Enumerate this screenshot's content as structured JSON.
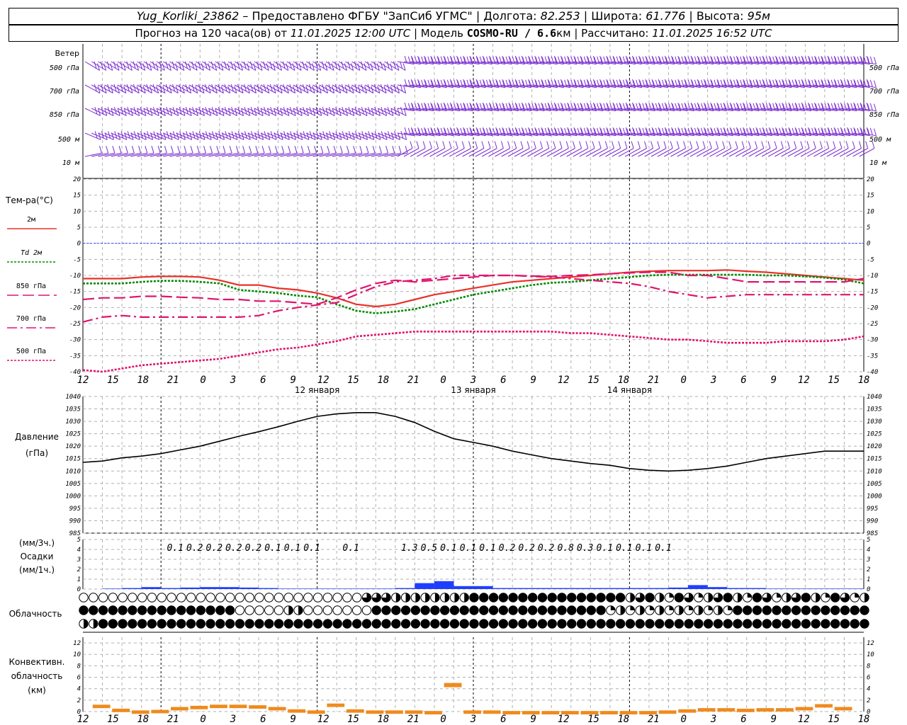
{
  "header": {
    "station": "Yug_Korliki_23862",
    "provided": "– Предоставлено ФГБУ \"ЗапСиб УГМС\"",
    "lon_label": "Долгота:",
    "lon": "82.253",
    "lat_label": "Широта:",
    "lat": "61.776",
    "alt_label": "Высота:",
    "alt": "95м",
    "forecast_label": "Прогноз на 120 часа(ов) от",
    "forecast_from": "11.01.2025 12:00 UTC",
    "model_label": "Модель",
    "model": "COSMO-RU / 6.6",
    "model_unit": "км",
    "computed_label": "Рассчитано:",
    "computed": "11.01.2025 16:52 UTC"
  },
  "colors": {
    "wind": "#7b2fd0",
    "t2m": "#e8322a",
    "td2m": "#008a00",
    "t850": "#e0146e",
    "t700": "#e0146e",
    "t500": "#e0146e",
    "zero_line": "#3050ff",
    "pressure": "#000000",
    "precip": "#1f3fff",
    "convective": "#f08a1c",
    "grid": "#b0b0b0"
  },
  "time_axis": {
    "hour_labels": [
      "12",
      "15",
      "18",
      "21",
      "0",
      "3",
      "6",
      "9",
      "12",
      "15",
      "18",
      "21",
      "0",
      "3",
      "6",
      "9",
      "12",
      "15",
      "18",
      "21",
      "0",
      "3",
      "6",
      "9",
      "12",
      "15",
      "18"
    ],
    "day_labels": [
      {
        "text": "12 января",
        "hour": 36
      },
      {
        "text": "13 января",
        "hour": 60
      },
      {
        "text": "14 января",
        "hour": 84
      }
    ],
    "day_boundaries": [
      12,
      36,
      60,
      84
    ]
  },
  "wind": {
    "title": "Ветер",
    "levels": [
      "500 гПа",
      "700 гПа",
      "850 гПа",
      "500 м",
      "10  м"
    ]
  },
  "temperature": {
    "title": "Тем-ра(°С)",
    "legend": [
      {
        "label": "2м",
        "key": "t2m"
      },
      {
        "label": "Td  2м",
        "key": "td2m"
      },
      {
        "label": "850 гПа",
        "key": "t850"
      },
      {
        "label": "700 гПа",
        "key": "t700"
      },
      {
        "label": "500 гПа",
        "key": "t500"
      }
    ],
    "ticks": [
      "20",
      "15",
      "10",
      "5",
      "0",
      "-5",
      "-10",
      "-15",
      "-20",
      "-25",
      "-30",
      "-35",
      "-40"
    ]
  },
  "pressure": {
    "title": "Давление",
    "unit": "(гПа)",
    "ticks": [
      "1040",
      "1035",
      "1030",
      "1025",
      "1020",
      "1015",
      "1010",
      "1005",
      "1000",
      "995",
      "990",
      "985"
    ]
  },
  "precip": {
    "unit3": "(мм/3ч.)",
    "title": "Осадки",
    "unit1": "(мм/1ч.)",
    "ticks": [
      "5",
      "4",
      "3",
      "2",
      "1",
      "0"
    ],
    "labels": [
      {
        "hour": 12,
        "text": "0.1"
      },
      {
        "hour": 15,
        "text": "0.2"
      },
      {
        "hour": 18,
        "text": "0.2"
      },
      {
        "hour": 21,
        "text": "0.2"
      },
      {
        "hour": 24,
        "text": "0.2"
      },
      {
        "hour": 27,
        "text": "0.1"
      },
      {
        "hour": 30,
        "text": "0.1"
      },
      {
        "hour": 33,
        "text": "0.1"
      },
      {
        "hour": 39,
        "text": "0.1"
      },
      {
        "hour": 48,
        "text": "1.3"
      },
      {
        "hour": 51,
        "text": "0.5"
      },
      {
        "hour": 54,
        "text": "0.1"
      },
      {
        "hour": 57,
        "text": "0.1"
      },
      {
        "hour": 60,
        "text": "0.1"
      },
      {
        "hour": 63,
        "text": "0.2"
      },
      {
        "hour": 66,
        "text": "0.2"
      },
      {
        "hour": 69,
        "text": "0.2"
      },
      {
        "hour": 72,
        "text": "0.8"
      },
      {
        "hour": 75,
        "text": "0.3"
      },
      {
        "hour": 78,
        "text": "0.1"
      },
      {
        "hour": 81,
        "text": "0.1"
      },
      {
        "hour": 84,
        "text": "0.1"
      },
      {
        "hour": 87,
        "text": "0.1"
      }
    ]
  },
  "cloud": {
    "title": "Облачность"
  },
  "convective": {
    "title1": "Конвективн.",
    "title2": "облачность",
    "unit": "(км)",
    "ticks": [
      "12",
      "10",
      "8",
      "6",
      "4",
      "2",
      "0"
    ]
  },
  "chart_data": [
    {
      "type": "line",
      "title": "Тем-ра(°С)",
      "x_unit": "hours from 11.01.2025 12:00 UTC",
      "ylim": [
        -40,
        20
      ],
      "grid": true,
      "legend_position": "left",
      "series": [
        {
          "name": "2м",
          "key": "t2m",
          "style": "solid",
          "x": [
            0,
            6,
            9,
            12,
            15,
            18,
            21,
            24,
            27,
            30,
            33,
            36,
            39,
            42,
            45,
            48,
            51,
            54,
            57,
            60,
            63,
            66,
            69,
            72,
            75,
            78,
            81,
            84,
            87,
            90,
            93,
            96,
            99,
            102,
            105,
            108,
            111,
            114,
            117,
            120
          ],
          "y": [
            -11,
            -11,
            -10.5,
            -10.3,
            -10.3,
            -10.5,
            -11.5,
            -13,
            -13,
            -14,
            -14.5,
            -15.5,
            -17,
            -19,
            -19.7,
            -19,
            -17.5,
            -16,
            -15,
            -14,
            -13,
            -12,
            -11.5,
            -11,
            -10.5,
            -10,
            -9.5,
            -9,
            -8.7,
            -8.5,
            -8.5,
            -8.5,
            -8.3,
            -8.7,
            -9,
            -9.5,
            -10,
            -10.5,
            -11,
            -11.5
          ]
        },
        {
          "name": "Td  2м",
          "key": "td2m",
          "style": "dotted",
          "x": [
            0,
            6,
            9,
            12,
            15,
            18,
            21,
            24,
            27,
            30,
            33,
            36,
            39,
            42,
            45,
            48,
            51,
            54,
            57,
            60,
            63,
            66,
            69,
            72,
            75,
            78,
            81,
            84,
            87,
            90,
            93,
            96,
            99,
            102,
            105,
            108,
            111,
            114,
            117,
            120
          ],
          "y": [
            -12.5,
            -12.5,
            -12,
            -11.7,
            -11.7,
            -12,
            -12.5,
            -14.5,
            -15,
            -15.5,
            -16.3,
            -16.8,
            -19,
            -21,
            -21.8,
            -21.3,
            -20.5,
            -19,
            -17.5,
            -16,
            -15,
            -14,
            -13,
            -12.3,
            -12,
            -11.5,
            -11,
            -10.5,
            -10,
            -9.8,
            -9.8,
            -9.8,
            -9.8,
            -9.8,
            -10,
            -10,
            -10.3,
            -10.7,
            -11.3,
            -12.5
          ]
        },
        {
          "name": "850 гПа",
          "key": "t850",
          "style": "longdash",
          "x": [
            0,
            3,
            6,
            9,
            12,
            15,
            18,
            21,
            24,
            27,
            30,
            33,
            36,
            39,
            42,
            45,
            48,
            51,
            54,
            57,
            60,
            63,
            66,
            69,
            72,
            75,
            78,
            81,
            84,
            87,
            90,
            93,
            96,
            99,
            102,
            105,
            108,
            111,
            114,
            117,
            120
          ],
          "y": [
            -17.5,
            -17,
            -17,
            -16.5,
            -16.5,
            -16.8,
            -17,
            -17.5,
            -17.5,
            -18,
            -18,
            -18.5,
            -19,
            -17,
            -14.5,
            -12.5,
            -11.5,
            -12,
            -11.5,
            -11,
            -10.5,
            -10,
            -10,
            -10.2,
            -10.3,
            -10,
            -9.8,
            -9.5,
            -9.2,
            -9,
            -9,
            -10,
            -10,
            -11,
            -12,
            -12,
            -12,
            -12,
            -12,
            -12,
            -11
          ]
        },
        {
          "name": "700 гПа",
          "key": "t700",
          "style": "dashdot",
          "x": [
            0,
            3,
            6,
            9,
            12,
            15,
            18,
            21,
            24,
            27,
            30,
            33,
            36,
            39,
            42,
            45,
            48,
            51,
            54,
            57,
            60,
            63,
            66,
            69,
            72,
            75,
            78,
            81,
            84,
            87,
            90,
            93,
            96,
            99,
            102,
            105,
            108,
            111,
            114,
            117,
            120
          ],
          "y": [
            -24.5,
            -23,
            -22.5,
            -23,
            -23,
            -23,
            -23,
            -23,
            -23,
            -22.5,
            -21,
            -20,
            -19.2,
            -18.5,
            -16,
            -13.5,
            -12,
            -11.5,
            -11,
            -10,
            -10,
            -10,
            -10,
            -10.3,
            -10.5,
            -11,
            -11.5,
            -12,
            -12.5,
            -13.5,
            -15,
            -16,
            -17,
            -16.5,
            -16,
            -16,
            -16,
            -16,
            -16,
            -16,
            -16
          ]
        },
        {
          "name": "500 гПа",
          "key": "t500",
          "style": "dotted",
          "x": [
            0,
            3,
            6,
            9,
            12,
            15,
            18,
            21,
            24,
            27,
            30,
            33,
            36,
            39,
            42,
            45,
            48,
            51,
            54,
            57,
            60,
            63,
            66,
            69,
            72,
            75,
            78,
            81,
            84,
            87,
            90,
            93,
            96,
            99,
            102,
            105,
            108,
            111,
            114,
            117,
            120
          ],
          "y": [
            -39.5,
            -40,
            -39,
            -38,
            -37.5,
            -37,
            -36.5,
            -36,
            -35,
            -34,
            -33,
            -32.5,
            -31.5,
            -30.5,
            -29,
            -28.5,
            -28,
            -27.5,
            -27.5,
            -27.5,
            -27.5,
            -27.5,
            -27.5,
            -27.5,
            -27.5,
            -28,
            -28,
            -28.5,
            -29,
            -29.5,
            -30,
            -30,
            -30.5,
            -31,
            -31,
            -31,
            -30.5,
            -30.5,
            -30.5,
            -30,
            -29
          ]
        }
      ]
    },
    {
      "type": "line",
      "title": "Давление",
      "ylabel": "(гПа)",
      "ylim": [
        985,
        1040
      ],
      "grid": true,
      "series": [
        {
          "name": "Давление",
          "x": [
            0,
            3,
            6,
            9,
            12,
            15,
            18,
            21,
            24,
            27,
            30,
            33,
            36,
            39,
            42,
            45,
            48,
            51,
            54,
            57,
            60,
            63,
            66,
            69,
            72,
            75,
            78,
            81,
            84,
            87,
            90,
            93,
            96,
            99,
            102,
            105,
            108,
            111,
            114,
            117,
            120
          ],
          "y": [
            1013.5,
            1014,
            1015.3,
            1016,
            1017,
            1018.5,
            1020,
            1022,
            1024,
            1025.8,
            1027.8,
            1030,
            1032,
            1033,
            1033.5,
            1033.5,
            1032,
            1029.5,
            1026,
            1023,
            1021.5,
            1020,
            1018,
            1016.5,
            1015,
            1014,
            1013,
            1012.3,
            1011,
            1010.3,
            1010,
            1010.3,
            1011,
            1012,
            1013.5,
            1015,
            1016,
            1017,
            1018,
            1018,
            1018
          ]
        }
      ]
    },
    {
      "type": "bar",
      "title": "Осадки",
      "ylabel": "(мм/1ч.)",
      "ylim": [
        0,
        5
      ],
      "x": [
        0,
        3,
        6,
        9,
        12,
        15,
        18,
        21,
        24,
        27,
        30,
        33,
        36,
        39,
        42,
        45,
        48,
        51,
        54,
        57,
        60,
        63,
        66,
        69,
        72,
        75,
        78,
        81,
        84,
        87,
        90,
        93,
        96,
        99,
        102,
        105,
        108,
        111,
        114,
        117
      ],
      "values": [
        0,
        0.05,
        0.1,
        0.2,
        0.1,
        0.15,
        0.2,
        0.2,
        0.15,
        0.1,
        0.05,
        0.05,
        0.05,
        0.05,
        0.05,
        0.05,
        0.1,
        0.6,
        0.8,
        0.3,
        0.3,
        0.1,
        0.1,
        0.1,
        0.1,
        0.1,
        0.1,
        0.1,
        0.1,
        0.1,
        0.15,
        0.4,
        0.2,
        0.1,
        0.1,
        0.05,
        0.05,
        0.05,
        0.05,
        0.05
      ]
    },
    {
      "type": "table",
      "title": "Облачность",
      "x_step_hours": 1.5,
      "rows": [
        "upper",
        "middle",
        "lower"
      ],
      "legend": "0=clear,1=quarter,2=half,3=three-quarter,4=overcast"
    },
    {
      "type": "bar",
      "title": "Конвективн. облачность",
      "ylabel": "(км)",
      "ylim": [
        0,
        13
      ],
      "x": [
        3,
        6,
        9,
        12,
        15,
        18,
        21,
        24,
        27,
        30,
        33,
        36,
        39,
        42,
        45,
        48,
        51,
        54,
        57,
        60,
        63,
        66,
        69,
        72,
        75,
        78,
        81,
        84,
        87,
        90,
        93,
        96,
        99,
        102,
        105,
        108,
        111,
        114,
        117
      ],
      "values": [
        1.2,
        0.5,
        0.2,
        0.3,
        0.8,
        1,
        1.2,
        1.2,
        1.1,
        0.8,
        0.4,
        0.2,
        1.4,
        0.4,
        0.2,
        0.2,
        0.2,
        0.1,
        5,
        0.2,
        0.2,
        0.1,
        0.1,
        0.1,
        0.1,
        0.1,
        0.1,
        0.1,
        0.1,
        0.2,
        0.4,
        0.6,
        0.6,
        0.5,
        0.6,
        0.6,
        0.8,
        1.3,
        0.8
      ]
    }
  ]
}
